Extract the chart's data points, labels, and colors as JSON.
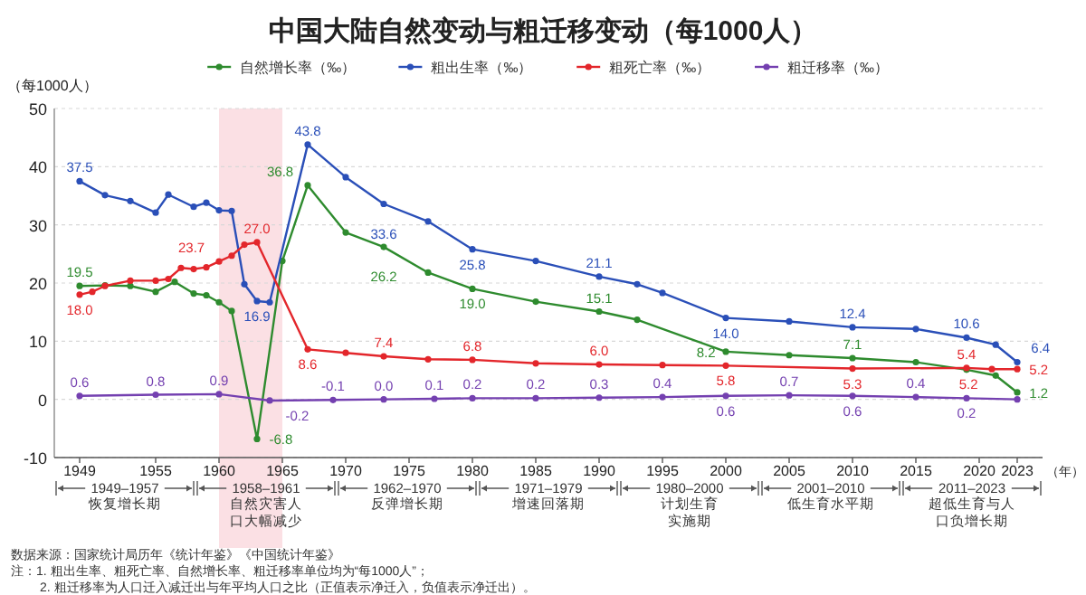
{
  "chart_data": {
    "type": "line",
    "title": "中国大陆自然变动与粗迁移变动（每1000人）",
    "ylabel": "（每1000人）",
    "xlabel": "（年）",
    "xlim": [
      1947,
      2025
    ],
    "xticks": [
      1949,
      1955,
      1960,
      1965,
      1970,
      1975,
      1980,
      1985,
      1990,
      1995,
      2000,
      2005,
      2010,
      2015,
      2020,
      2023
    ],
    "ylim": [
      -10,
      50
    ],
    "yticks": [
      -10,
      0,
      10,
      20,
      30,
      40,
      50
    ],
    "grid": "y",
    "legend": "top",
    "marker": "circle",
    "line_style": "solid",
    "series": [
      {
        "name": "自然增长率（‰）",
        "color": "#2e8b2e",
        "x": [
          1949,
          1951,
          1953,
          1955,
          1956.5,
          1958,
          1959,
          1960,
          1961,
          1963,
          1965,
          1967,
          1970,
          1973,
          1976.5,
          1980,
          1985,
          1990,
          1993,
          2000,
          2005,
          2010,
          2015,
          2019,
          2021.3,
          2023
        ],
        "values": [
          19.5,
          19.6,
          19.5,
          18.5,
          20.2,
          18.2,
          17.9,
          16.7,
          15.2,
          -6.8,
          23.8,
          36.8,
          28.7,
          26.2,
          21.8,
          19.0,
          16.8,
          15.1,
          13.7,
          8.2,
          7.6,
          7.1,
          6.4,
          5.1,
          4.1,
          1.2
        ],
        "value_labels": [
          "19.5",
          null,
          null,
          null,
          null,
          null,
          null,
          null,
          null,
          "-6.8",
          null,
          "36.8",
          null,
          "26.2",
          null,
          "19.0",
          null,
          "15.1",
          null,
          "8.2",
          null,
          "7.1",
          null,
          null,
          null,
          "1.2"
        ]
      },
      {
        "name": "粗出生率（‰）",
        "color": "#2a4fb8",
        "x": [
          1949,
          1951,
          1953,
          1955,
          1956,
          1958,
          1959,
          1960,
          1961,
          1962,
          1963,
          1964,
          1967,
          1970,
          1973,
          1976.5,
          1980,
          1985,
          1990,
          1993,
          1995,
          2000,
          2005,
          2010,
          2015,
          2019,
          2021.3,
          2023
        ],
        "values": [
          37.5,
          35.1,
          34.1,
          32.1,
          35.2,
          33.1,
          33.8,
          32.5,
          32.4,
          19.8,
          16.9,
          16.7,
          43.8,
          38.2,
          33.6,
          30.6,
          25.8,
          23.8,
          21.1,
          19.8,
          18.3,
          14.0,
          13.4,
          12.4,
          12.1,
          10.6,
          9.4,
          6.4
        ],
        "value_labels": [
          "37.5",
          null,
          null,
          null,
          null,
          null,
          null,
          null,
          null,
          null,
          "16.9",
          null,
          "43.8",
          null,
          "33.6",
          null,
          "25.8",
          null,
          "21.1",
          null,
          null,
          "14.0",
          null,
          "12.4",
          null,
          "10.6",
          null,
          "6.4"
        ]
      },
      {
        "name": "粗死亡率（‰）",
        "color": "#e3262b",
        "x": [
          1949,
          1950,
          1951,
          1953,
          1955,
          1956,
          1957,
          1958,
          1959,
          1960,
          1961,
          1962,
          1963,
          1967,
          1970,
          1973,
          1976.5,
          1980,
          1985,
          1990,
          1995,
          2000,
          2010,
          2019,
          2021,
          2023
        ],
        "values": [
          18.0,
          18.5,
          19.5,
          20.4,
          20.4,
          20.7,
          22.6,
          22.4,
          22.7,
          23.7,
          24.7,
          26.6,
          27.0,
          8.6,
          8.0,
          7.4,
          6.9,
          6.8,
          6.2,
          6.0,
          5.9,
          5.8,
          5.3,
          5.4,
          5.2,
          5.2
        ],
        "value_labels": [
          "18.0",
          null,
          null,
          null,
          null,
          null,
          null,
          null,
          null,
          "23.7",
          null,
          null,
          "27.0",
          "8.6",
          null,
          "7.4",
          null,
          "6.8",
          null,
          "6.0",
          null,
          "5.8",
          "5.3",
          "5.4",
          "5.2",
          "5.2"
        ]
      },
      {
        "name": "粗迁移率（‰）",
        "color": "#7440b0",
        "x": [
          1949,
          1955,
          1960,
          1964,
          1969,
          1973,
          1977,
          1980,
          1985,
          1990,
          1995,
          2000,
          2005,
          2010,
          2015,
          2019,
          2023
        ],
        "values": [
          0.6,
          0.8,
          0.9,
          -0.2,
          -0.1,
          0.0,
          0.1,
          0.2,
          0.2,
          0.3,
          0.4,
          0.6,
          0.7,
          0.6,
          0.4,
          0.2,
          0.0
        ],
        "value_labels": [
          "0.6",
          "0.8",
          "0.9",
          "-0.2",
          "-0.1",
          "0.0",
          "0.1",
          "0.2",
          "0.2",
          "0.3",
          "0.4",
          "0.6",
          "0.7",
          "0.6",
          "0.4",
          "0.2",
          null
        ]
      }
    ],
    "bands": [
      {
        "axis": "x",
        "from": 1960,
        "to": 1965,
        "color": "#fbe0e4"
      }
    ],
    "annotations": [
      "1949–1957 恢复增长期",
      "1958–1961 自然灾害人口大幅减少",
      "1962–1970 反弹增长期",
      "1971–1979 增速回落期",
      "1980–2000 计划生育实施期",
      "2001–2010 低生育水平期",
      "2011–2023 超低生育与人口负增长期",
      "数据来源：国家统计局历年《统计年鉴》《中国统计年鉴》",
      "注：1. 粗出生率、粗死亡率、自然增长率、粗迁移率单位均为“每1000人”；",
      "2. 粗迁移率为人口迁入减迁出与年平均人口之比（正值表示净迁入，负值表示净迁出）。"
    ]
  }
}
